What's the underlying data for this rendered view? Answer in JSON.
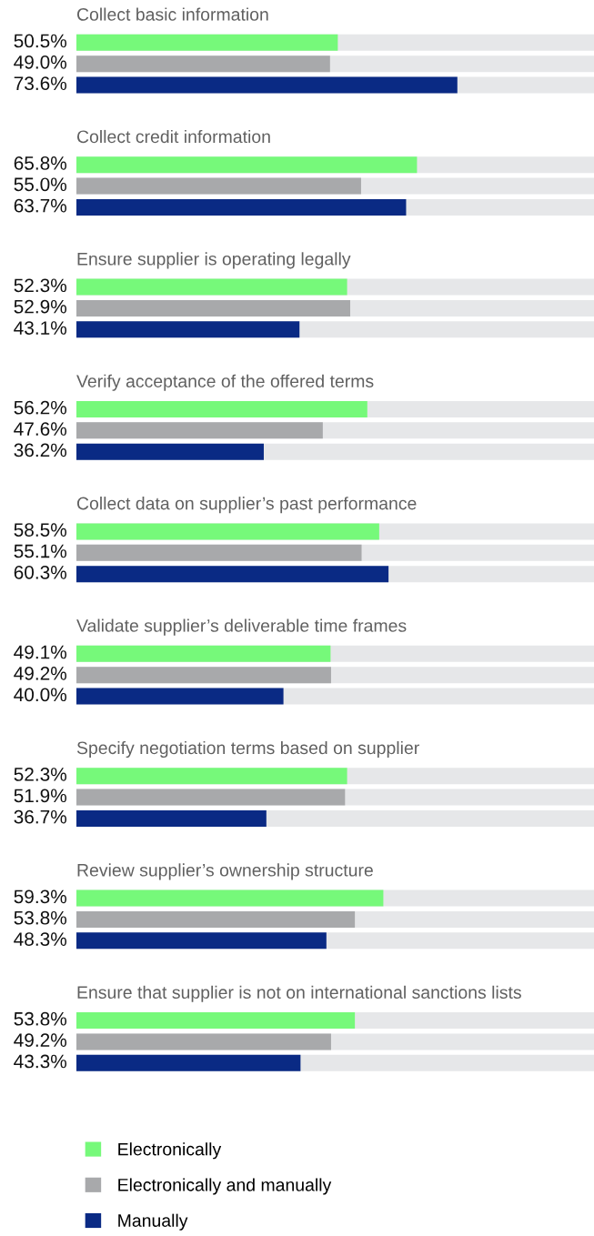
{
  "chart_data": {
    "type": "bar",
    "orientation": "horizontal",
    "categories": [
      "Collect basic information",
      "Collect credit information",
      "Ensure supplier is operating legally",
      "Verify acceptance of the offered terms",
      "Collect data on supplier’s past performance",
      "Validate supplier’s deliverable time frames",
      "Specify negotiation terms based on supplier",
      "Review supplier’s ownership structure",
      "Ensure that supplier is not on international sanctions lists"
    ],
    "series": [
      {
        "name": "Electronically",
        "color": "#76f97a",
        "values": [
          50.5,
          65.8,
          52.3,
          56.2,
          58.5,
          49.1,
          52.3,
          59.3,
          53.8
        ],
        "value_labels": [
          "50.5%",
          "65.8%",
          "52.3%",
          "56.2%",
          "58.5%",
          "49.1%",
          "52.3%",
          "59.3%",
          "53.8%"
        ]
      },
      {
        "name": "Electronically and manually",
        "color": "#a8a9ab",
        "values": [
          49.0,
          55.0,
          52.9,
          47.6,
          55.1,
          49.2,
          51.9,
          53.8,
          49.2
        ],
        "value_labels": [
          "49.0%",
          "55.0%",
          "52.9%",
          "47.6%",
          "55.1%",
          "49.2%",
          "51.9%",
          "53.8%",
          "49.2%"
        ]
      },
      {
        "name": "Manually",
        "color": "#0a2a84",
        "values": [
          73.6,
          63.7,
          43.1,
          36.2,
          60.3,
          40.0,
          36.7,
          48.3,
          43.3
        ],
        "value_labels": [
          "73.6%",
          "63.7%",
          "43.1%",
          "36.2%",
          "60.3%",
          "40.0%",
          "36.7%",
          "48.3%",
          "43.3%"
        ]
      }
    ],
    "xlim": [
      0,
      100
    ],
    "legend": "bottom"
  }
}
